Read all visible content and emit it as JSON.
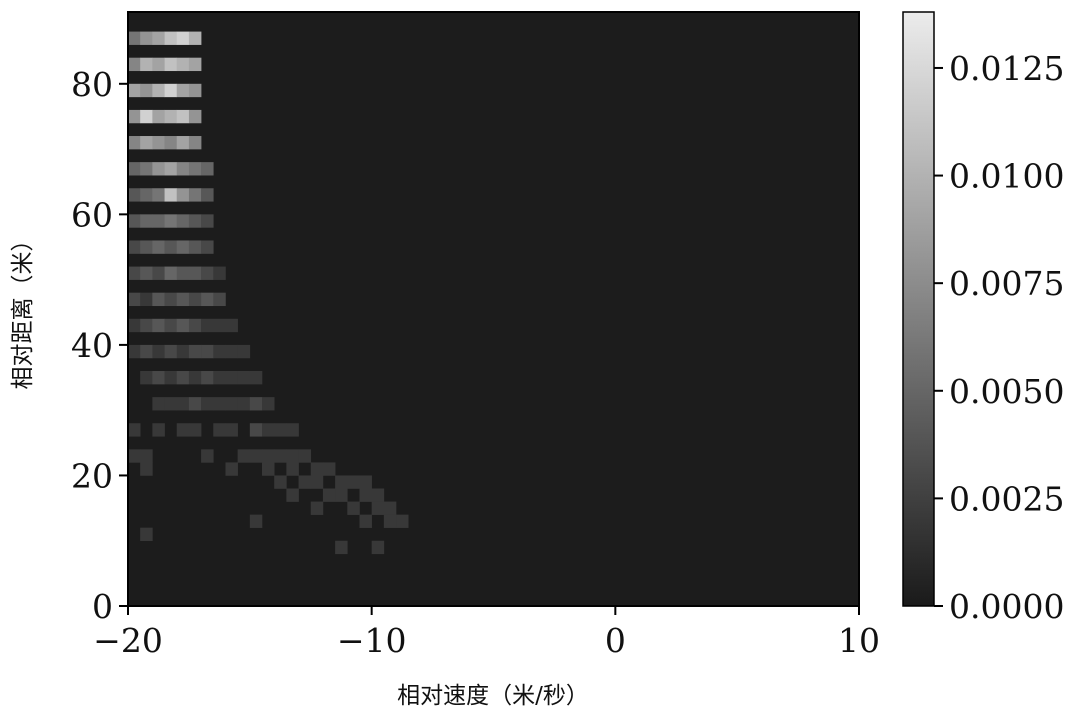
{
  "chart_data": {
    "type": "heatmap",
    "title": "",
    "xlabel": "相对速度（米/秒）",
    "ylabel": "相对距离（米）",
    "xlim": [
      -20,
      10
    ],
    "ylim": [
      0,
      91
    ],
    "xticks": [
      -20,
      -10,
      0,
      10
    ],
    "xtick_labels": [
      "−20",
      "−10",
      "0",
      "10"
    ],
    "yticks": [
      0,
      20,
      40,
      60,
      80
    ],
    "ytick_labels": [
      "0",
      "20",
      "40",
      "60",
      "80"
    ],
    "colorbar": {
      "range": [
        0,
        0.0138
      ],
      "ticks": [
        0,
        0.0025,
        0.005,
        0.0075,
        0.01,
        0.0125
      ],
      "tick_labels": [
        "0.0000",
        "0.0025",
        "0.0050",
        "0.0075",
        "0.0100",
        "0.0125"
      ],
      "colormap": "gray",
      "min_color": "#1a1a1a",
      "max_color": "#ececec"
    },
    "background_color": "#1c1c1c",
    "cell_width": 0.5,
    "cell_height": 2,
    "cells": [
      [
        -20,
        86,
        0.006
      ],
      [
        -19.5,
        86,
        0.008
      ],
      [
        -19,
        86,
        0.009
      ],
      [
        -18.5,
        86,
        0.011
      ],
      [
        -18,
        86,
        0.012
      ],
      [
        -17.5,
        86,
        0.01
      ],
      [
        -20,
        82,
        0.007
      ],
      [
        -19.5,
        82,
        0.01
      ],
      [
        -19,
        82,
        0.009
      ],
      [
        -18.5,
        82,
        0.011
      ],
      [
        -18,
        82,
        0.01
      ],
      [
        -17.5,
        82,
        0.009
      ],
      [
        -20,
        78,
        0.009
      ],
      [
        -19.5,
        78,
        0.008
      ],
      [
        -19,
        78,
        0.01
      ],
      [
        -18.5,
        78,
        0.012
      ],
      [
        -18,
        78,
        0.009
      ],
      [
        -17.5,
        78,
        0.008
      ],
      [
        -20,
        74,
        0.008
      ],
      [
        -19.5,
        74,
        0.012
      ],
      [
        -19,
        74,
        0.009
      ],
      [
        -18.5,
        74,
        0.01
      ],
      [
        -18,
        74,
        0.011
      ],
      [
        -17.5,
        74,
        0.008
      ],
      [
        -20,
        70,
        0.007
      ],
      [
        -19.5,
        70,
        0.009
      ],
      [
        -19,
        70,
        0.008
      ],
      [
        -18.5,
        70,
        0.007
      ],
      [
        -18,
        70,
        0.009
      ],
      [
        -17.5,
        70,
        0.007
      ],
      [
        -20,
        66,
        0.005
      ],
      [
        -19.5,
        66,
        0.006
      ],
      [
        -19,
        66,
        0.008
      ],
      [
        -18.5,
        66,
        0.009
      ],
      [
        -18,
        66,
        0.007
      ],
      [
        -17.5,
        66,
        0.006
      ],
      [
        -17,
        66,
        0.005
      ],
      [
        -20,
        62,
        0.004
      ],
      [
        -19.5,
        62,
        0.005
      ],
      [
        -19,
        62,
        0.006
      ],
      [
        -18.5,
        62,
        0.011
      ],
      [
        -18,
        62,
        0.008
      ],
      [
        -17.5,
        62,
        0.006
      ],
      [
        -17,
        62,
        0.004
      ],
      [
        -20,
        58,
        0.004
      ],
      [
        -19.5,
        58,
        0.005
      ],
      [
        -19,
        58,
        0.005
      ],
      [
        -18.5,
        58,
        0.006
      ],
      [
        -18,
        58,
        0.005
      ],
      [
        -17.5,
        58,
        0.004
      ],
      [
        -17,
        58,
        0.003
      ],
      [
        -20,
        54,
        0.003
      ],
      [
        -19.5,
        54,
        0.004
      ],
      [
        -19,
        54,
        0.005
      ],
      [
        -18.5,
        54,
        0.004
      ],
      [
        -18,
        54,
        0.005
      ],
      [
        -17.5,
        54,
        0.004
      ],
      [
        -17,
        54,
        0.003
      ],
      [
        -20,
        50,
        0.003
      ],
      [
        -19.5,
        50,
        0.004
      ],
      [
        -19,
        50,
        0.003
      ],
      [
        -18.5,
        50,
        0.005
      ],
      [
        -18,
        50,
        0.004
      ],
      [
        -17.5,
        50,
        0.004
      ],
      [
        -17,
        50,
        0.003
      ],
      [
        -16.5,
        50,
        0.002
      ],
      [
        -20,
        46,
        0.003
      ],
      [
        -19.5,
        46,
        0.002
      ],
      [
        -19,
        46,
        0.004
      ],
      [
        -18.5,
        46,
        0.003
      ],
      [
        -18,
        46,
        0.004
      ],
      [
        -17.5,
        46,
        0.003
      ],
      [
        -17,
        46,
        0.004
      ],
      [
        -16.5,
        46,
        0.003
      ],
      [
        -20,
        42,
        0.002
      ],
      [
        -19.5,
        42,
        0.003
      ],
      [
        -19,
        42,
        0.004
      ],
      [
        -18.5,
        42,
        0.003
      ],
      [
        -18,
        42,
        0.004
      ],
      [
        -17.5,
        42,
        0.003
      ],
      [
        -17,
        42,
        0.002
      ],
      [
        -16.5,
        42,
        0.002
      ],
      [
        -16,
        42,
        0.002
      ],
      [
        -20,
        38,
        0.002
      ],
      [
        -19.5,
        38,
        0.003
      ],
      [
        -19,
        38,
        0.002
      ],
      [
        -18.5,
        38,
        0.003
      ],
      [
        -18,
        38,
        0.002
      ],
      [
        -17.5,
        38,
        0.003
      ],
      [
        -17,
        38,
        0.003
      ],
      [
        -16.5,
        38,
        0.002
      ],
      [
        -16,
        38,
        0.002
      ],
      [
        -15.5,
        38,
        0.002
      ],
      [
        -19.5,
        34,
        0.002
      ],
      [
        -19,
        34,
        0.003
      ],
      [
        -18.5,
        34,
        0.002
      ],
      [
        -18,
        34,
        0.003
      ],
      [
        -17.5,
        34,
        0.002
      ],
      [
        -17,
        34,
        0.003
      ],
      [
        -16.5,
        34,
        0.002
      ],
      [
        -16,
        34,
        0.002
      ],
      [
        -15.5,
        34,
        0.002
      ],
      [
        -15,
        34,
        0.002
      ],
      [
        -19,
        30,
        0.002
      ],
      [
        -18.5,
        30,
        0.002
      ],
      [
        -18,
        30,
        0.002
      ],
      [
        -17.5,
        30,
        0.003
      ],
      [
        -17,
        30,
        0.002
      ],
      [
        -16.5,
        30,
        0.002
      ],
      [
        -16,
        30,
        0.002
      ],
      [
        -15.5,
        30,
        0.002
      ],
      [
        -15,
        30,
        0.003
      ],
      [
        -14.5,
        30,
        0.002
      ],
      [
        -20,
        26,
        0.002
      ],
      [
        -19,
        26,
        0.002
      ],
      [
        -18,
        26,
        0.002
      ],
      [
        -17.5,
        26,
        0.002
      ],
      [
        -16.5,
        26,
        0.002
      ],
      [
        -16,
        26,
        0.002
      ],
      [
        -15,
        26,
        0.003
      ],
      [
        -14.5,
        26,
        0.002
      ],
      [
        -14,
        26,
        0.002
      ],
      [
        -13.5,
        26,
        0.002
      ],
      [
        -20,
        22,
        0.002
      ],
      [
        -19.5,
        22,
        0.002
      ],
      [
        -17,
        22,
        0.002
      ],
      [
        -15.5,
        22,
        0.002
      ],
      [
        -15,
        22,
        0.002
      ],
      [
        -14.5,
        22,
        0.002
      ],
      [
        -14,
        22,
        0.002
      ],
      [
        -13.5,
        22,
        0.002
      ],
      [
        -13,
        22,
        0.002
      ],
      [
        -19.5,
        20,
        0.002
      ],
      [
        -16,
        20,
        0.002
      ],
      [
        -14.5,
        20,
        0.002
      ],
      [
        -13.5,
        20,
        0.002
      ],
      [
        -12.5,
        20,
        0.002
      ],
      [
        -12,
        20,
        0.002
      ],
      [
        -14,
        18,
        0.002
      ],
      [
        -13,
        18,
        0.002
      ],
      [
        -12.5,
        18,
        0.002
      ],
      [
        -11.5,
        18,
        0.002
      ],
      [
        -11,
        18,
        0.002
      ],
      [
        -10.5,
        18,
        0.002
      ],
      [
        -13.5,
        16,
        0.002
      ],
      [
        -12,
        16,
        0.002
      ],
      [
        -11.5,
        16,
        0.002
      ],
      [
        -10.5,
        16,
        0.002
      ],
      [
        -10,
        16,
        0.002
      ],
      [
        -12.5,
        14,
        0.002
      ],
      [
        -11,
        14,
        0.002
      ],
      [
        -10,
        14,
        0.002
      ],
      [
        -9.5,
        14,
        0.002
      ],
      [
        -15,
        12,
        0.002
      ],
      [
        -10.5,
        12,
        0.002
      ],
      [
        -9.5,
        12,
        0.002
      ],
      [
        -9,
        12,
        0.002
      ],
      [
        -19.5,
        10,
        0.002
      ],
      [
        -11.5,
        8,
        0.002
      ],
      [
        -10,
        8,
        0.002
      ]
    ]
  }
}
